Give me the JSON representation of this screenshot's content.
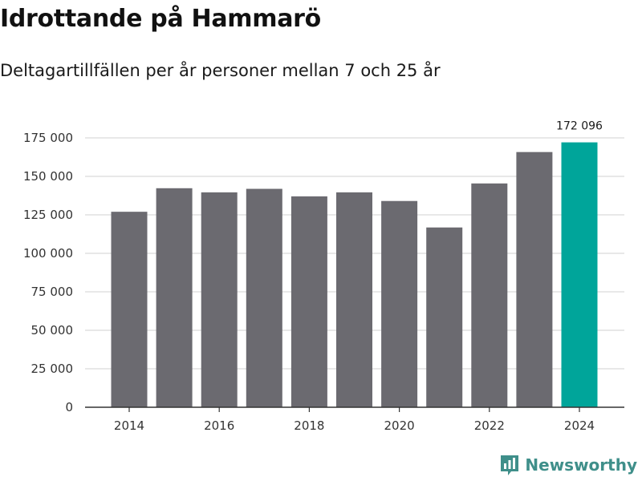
{
  "header": {
    "title": "Idrottande på Hammarö",
    "subtitle": "Deltagartillfällen per år personer mellan 7 och 25 år"
  },
  "brand": {
    "name": "Newsworthy",
    "icon": "newsworthy-bar-icon"
  },
  "colors": {
    "bar": "#6b6a70",
    "highlight": "#00a59a",
    "grid": "#d9d9d9",
    "axis": "#333333",
    "brand": "#3f8f8a"
  },
  "chart_data": {
    "type": "bar",
    "title": "Idrottande på Hammarö",
    "subtitle": "Deltagartillfällen per år personer mellan 7 och 25 år",
    "xlabel": "",
    "ylabel": "",
    "categories": [
      2014,
      2015,
      2016,
      2017,
      2018,
      2019,
      2020,
      2021,
      2022,
      2023,
      2024
    ],
    "x_tick_labels": [
      "2014",
      "2016",
      "2018",
      "2020",
      "2022",
      "2024"
    ],
    "values": [
      127000,
      142300,
      139600,
      141900,
      137000,
      139600,
      134000,
      116800,
      145400,
      165800,
      172096
    ],
    "highlight_index": 10,
    "highlight_label": "172 096",
    "ylim": [
      0,
      175000
    ],
    "y_ticks": [
      0,
      25000,
      50000,
      75000,
      100000,
      125000,
      150000,
      175000
    ],
    "y_tick_labels": [
      "0",
      "25 000",
      "50 000",
      "75 000",
      "100 000",
      "125 000",
      "150 000",
      "175 000"
    ],
    "grid": true
  }
}
